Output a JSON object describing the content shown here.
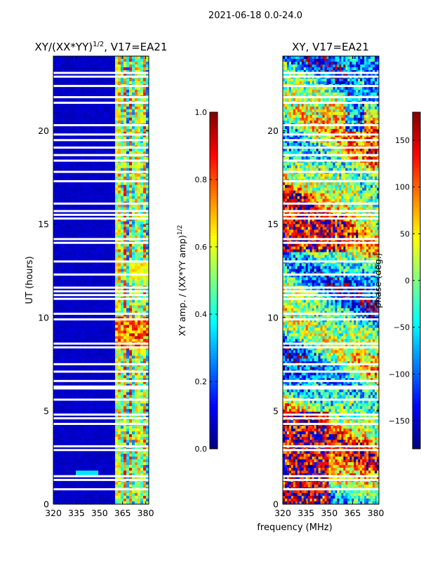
{
  "figure": {
    "suptitle": "2021-06-18 0.0-24.0",
    "xlabel": "frequency (MHz)"
  },
  "chart_data": [
    {
      "type": "heatmap",
      "title_main": "XY/(XX*YY)",
      "title_sup": "1/2",
      "title_rest": ", V17=EA21",
      "xlabel": "",
      "ylabel": "UT (hours)",
      "xlim": [
        320,
        382
      ],
      "ylim": [
        0,
        24
      ],
      "xticks": [
        "320",
        "335",
        "350",
        "365",
        "380"
      ],
      "xtick_values": [
        320,
        335,
        350,
        365,
        380
      ],
      "yticks": [
        "0",
        "5",
        "10",
        "15",
        "20"
      ],
      "ytick_values": [
        0,
        5,
        10,
        15,
        20
      ],
      "colormap": "jet",
      "colorbar": {
        "label_main": "XY amp. / (XX*YY amp)",
        "label_sup": "1/2",
        "range": [
          0.0,
          1.0
        ],
        "ticks": [
          "0.0",
          "0.2",
          "0.4",
          "0.6",
          "0.8",
          "1.0"
        ],
        "tick_values": [
          0.0,
          0.2,
          0.4,
          0.6,
          0.8,
          1.0
        ]
      },
      "description_values": {
        "low_band_mhz": [
          320,
          360
        ],
        "low_band_level": 0.05,
        "high_band_mhz": [
          361,
          382
        ],
        "high_band_level_range": [
          0.3,
          0.9
        ],
        "hot_interval_ut": [
          8.3,
          10.0
        ]
      },
      "flagged_ut_hours": [
        0.8,
        1.3,
        1.5,
        2.9,
        3.1,
        4.3,
        4.6,
        4.8,
        5.6,
        6.2,
        6.3,
        6.6,
        7.1,
        7.5,
        8.4,
        8.6,
        9.9,
        10.2,
        11.0,
        11.2,
        11.4,
        11.6,
        12.3,
        13.0,
        14.0,
        14.2,
        15.3,
        15.5,
        15.7,
        16.1,
        17.3,
        17.8,
        18.4,
        18.7,
        19.1,
        19.5,
        19.8,
        20.3,
        21.5,
        21.8,
        22.4,
        22.9,
        23.1
      ]
    },
    {
      "type": "heatmap",
      "title_main": "XY, V17=EA21",
      "title_sup": "",
      "title_rest": "",
      "xlabel": "",
      "ylabel": "",
      "xlim": [
        320,
        382
      ],
      "ylim": [
        0,
        24
      ],
      "xticks": [
        "320",
        "335",
        "350",
        "365",
        "380"
      ],
      "xtick_values": [
        320,
        335,
        350,
        365,
        380
      ],
      "yticks": [
        "0",
        "5",
        "10",
        "15",
        "20"
      ],
      "ytick_values": [
        0,
        5,
        10,
        15,
        20
      ],
      "colormap": "jet",
      "colorbar": {
        "label_main": "phase (deg.)",
        "label_sup": "",
        "range": [
          -180,
          180
        ],
        "ticks": [
          "−150",
          "−100",
          "−50",
          "0",
          "50",
          "100",
          "150"
        ],
        "tick_values": [
          -150,
          -100,
          -50,
          0,
          50,
          100,
          150
        ]
      },
      "flagged_ut_hours": [
        0.8,
        1.3,
        1.5,
        2.9,
        3.1,
        4.3,
        4.6,
        4.8,
        5.6,
        6.2,
        6.3,
        6.6,
        7.1,
        7.5,
        8.4,
        8.6,
        9.9,
        10.2,
        11.0,
        11.2,
        11.4,
        11.6,
        12.3,
        13.0,
        14.0,
        14.2,
        15.3,
        15.5,
        15.7,
        16.1,
        17.3,
        17.8,
        18.4,
        18.7,
        19.1,
        19.5,
        19.8,
        20.3,
        21.5,
        21.8,
        22.4,
        22.9,
        23.1
      ]
    }
  ]
}
